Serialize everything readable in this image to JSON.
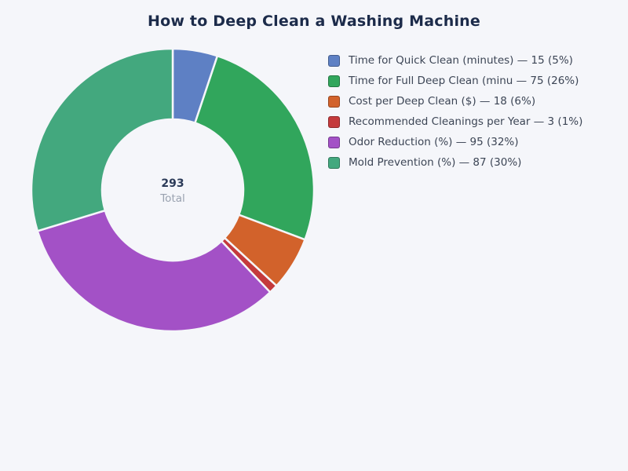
{
  "page": {
    "background_color": "#f5f6fa"
  },
  "chart_data": {
    "type": "pie",
    "subtype": "donut",
    "title": "How to Deep Clean a Washing Machine",
    "title_color": "#1c2b4a",
    "legend_position": "right",
    "categories": [
      "Time for Quick Clean (minutes)",
      "Time for Full Deep Clean (minu",
      "Cost per Deep Clean ($)",
      "Recommended Cleanings per Year",
      "Odor Reduction (%)",
      "Mold Prevention (%)"
    ],
    "values": [
      15,
      75,
      18,
      3,
      95,
      87
    ],
    "percents": [
      5,
      26,
      6,
      1,
      32,
      30
    ],
    "colors": [
      "#5e80c4",
      "#31a65c",
      "#d2622b",
      "#c43a3c",
      "#a351c6",
      "#43a87e"
    ],
    "total": "293",
    "center_label": "Total",
    "start_angle_deg": 0,
    "direction": "clockwise",
    "outer_radius_px": 180,
    "inner_radius_px": 90,
    "slice_gap_color": "#f5f6fa",
    "legend_separator": "—",
    "legend_text_color": "#3c4555",
    "center_value_color": "#2b3a58",
    "center_sub_color": "#9aa2b0"
  }
}
